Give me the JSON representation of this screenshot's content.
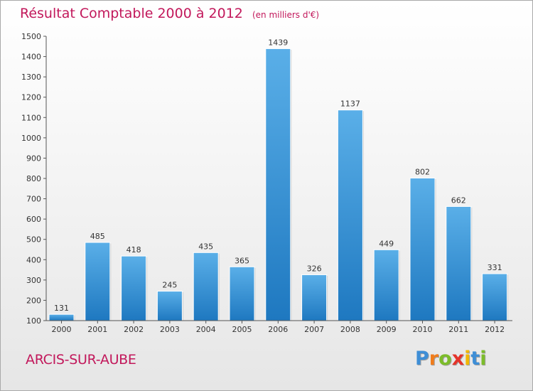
{
  "chart_data": {
    "type": "bar",
    "title": "Résultat Comptable 2000 à 2012",
    "subtitle": "(en milliers d'€)",
    "categories": [
      "2000",
      "2001",
      "2002",
      "2003",
      "2004",
      "2005",
      "2006",
      "2007",
      "2008",
      "2009",
      "2010",
      "2011",
      "2012"
    ],
    "values": [
      131,
      485,
      418,
      245,
      435,
      365,
      1439,
      326,
      1137,
      449,
      802,
      662,
      331
    ],
    "ylim": [
      100,
      1500
    ],
    "yticks": [
      100,
      200,
      300,
      400,
      500,
      600,
      700,
      800,
      900,
      1000,
      1100,
      1200,
      1300,
      1400,
      1500
    ],
    "xlabel": "",
    "ylabel": "",
    "grid": false,
    "bar_color_light": "#5aafe8",
    "bar_color_dark": "#1e78c0"
  },
  "footer": {
    "city": "ARCIS-SUR-AUBE",
    "logo_letters": [
      {
        "ch": "P",
        "color": "#3e8ed6"
      },
      {
        "ch": "r",
        "color": "#f07c1b"
      },
      {
        "ch": "o",
        "color": "#7cbc2a"
      },
      {
        "ch": "x",
        "color": "#e5332a"
      },
      {
        "ch": "i",
        "color": "#f2b705"
      },
      {
        "ch": "t",
        "color": "#3e8ed6"
      },
      {
        "ch": "i",
        "color": "#7cbc2a"
      }
    ]
  }
}
